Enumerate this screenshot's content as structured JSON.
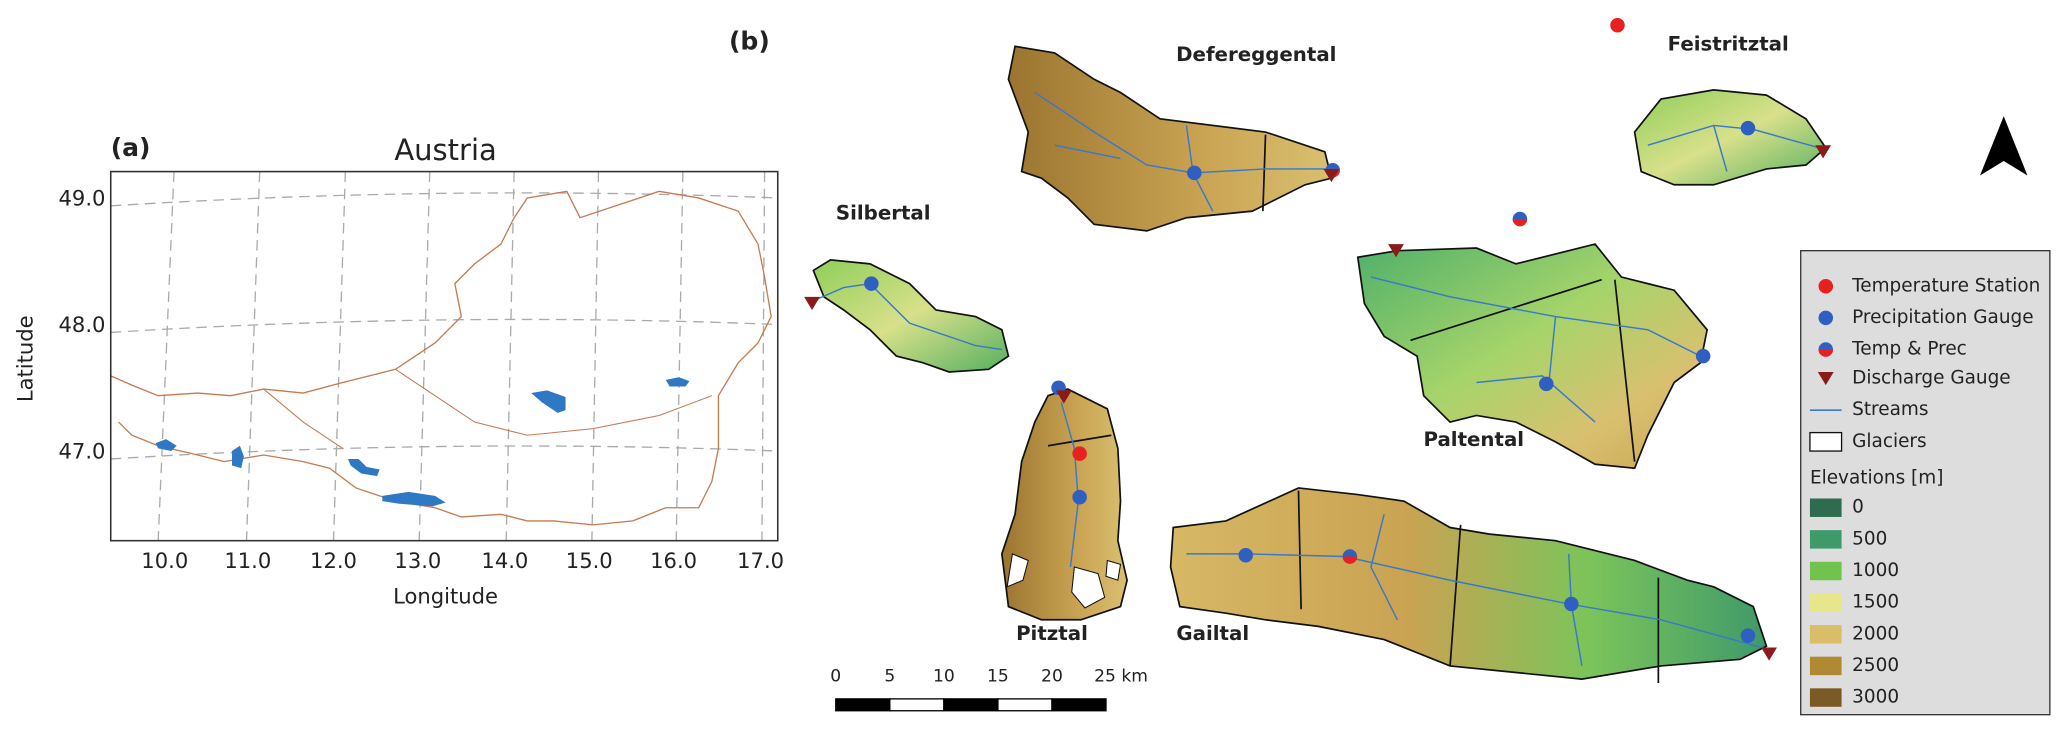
{
  "panel_a": {
    "label": "(a)",
    "title": "Austria",
    "x_label": "Longitude",
    "y_label": "Latitude",
    "x_ticks": [
      "10.0",
      "11.0",
      "12.0",
      "13.0",
      "14.0",
      "15.0",
      "16.0",
      "17.0"
    ],
    "y_ticks": [
      "49.0",
      "48.0",
      "47.0"
    ]
  },
  "panel_b": {
    "label": "(b)",
    "catchments": [
      "Defereggental",
      "Feistritztal",
      "Silbertal",
      "Paltental",
      "Pitztal",
      "Gailtal"
    ],
    "scale_bar": [
      "0",
      "5",
      "10",
      "15",
      "20",
      "25 km"
    ],
    "legend": {
      "items": [
        "Temperature Station",
        "Precipitation Gauge",
        "Temp & Prec",
        "Discharge Gauge",
        "Streams",
        "Glaciers"
      ],
      "elevation_title": "Elevations [m]",
      "elevations": [
        {
          "label": "0",
          "color": "#2e6b4f"
        },
        {
          "label": "500",
          "color": "#3f9a6a"
        },
        {
          "label": "1000",
          "color": "#72c24e"
        },
        {
          "label": "1500",
          "color": "#e8e68a"
        },
        {
          "label": "2000",
          "color": "#d9bd68"
        },
        {
          "label": "2500",
          "color": "#b08a33"
        },
        {
          "label": "3000",
          "color": "#7a5a25"
        }
      ]
    }
  }
}
